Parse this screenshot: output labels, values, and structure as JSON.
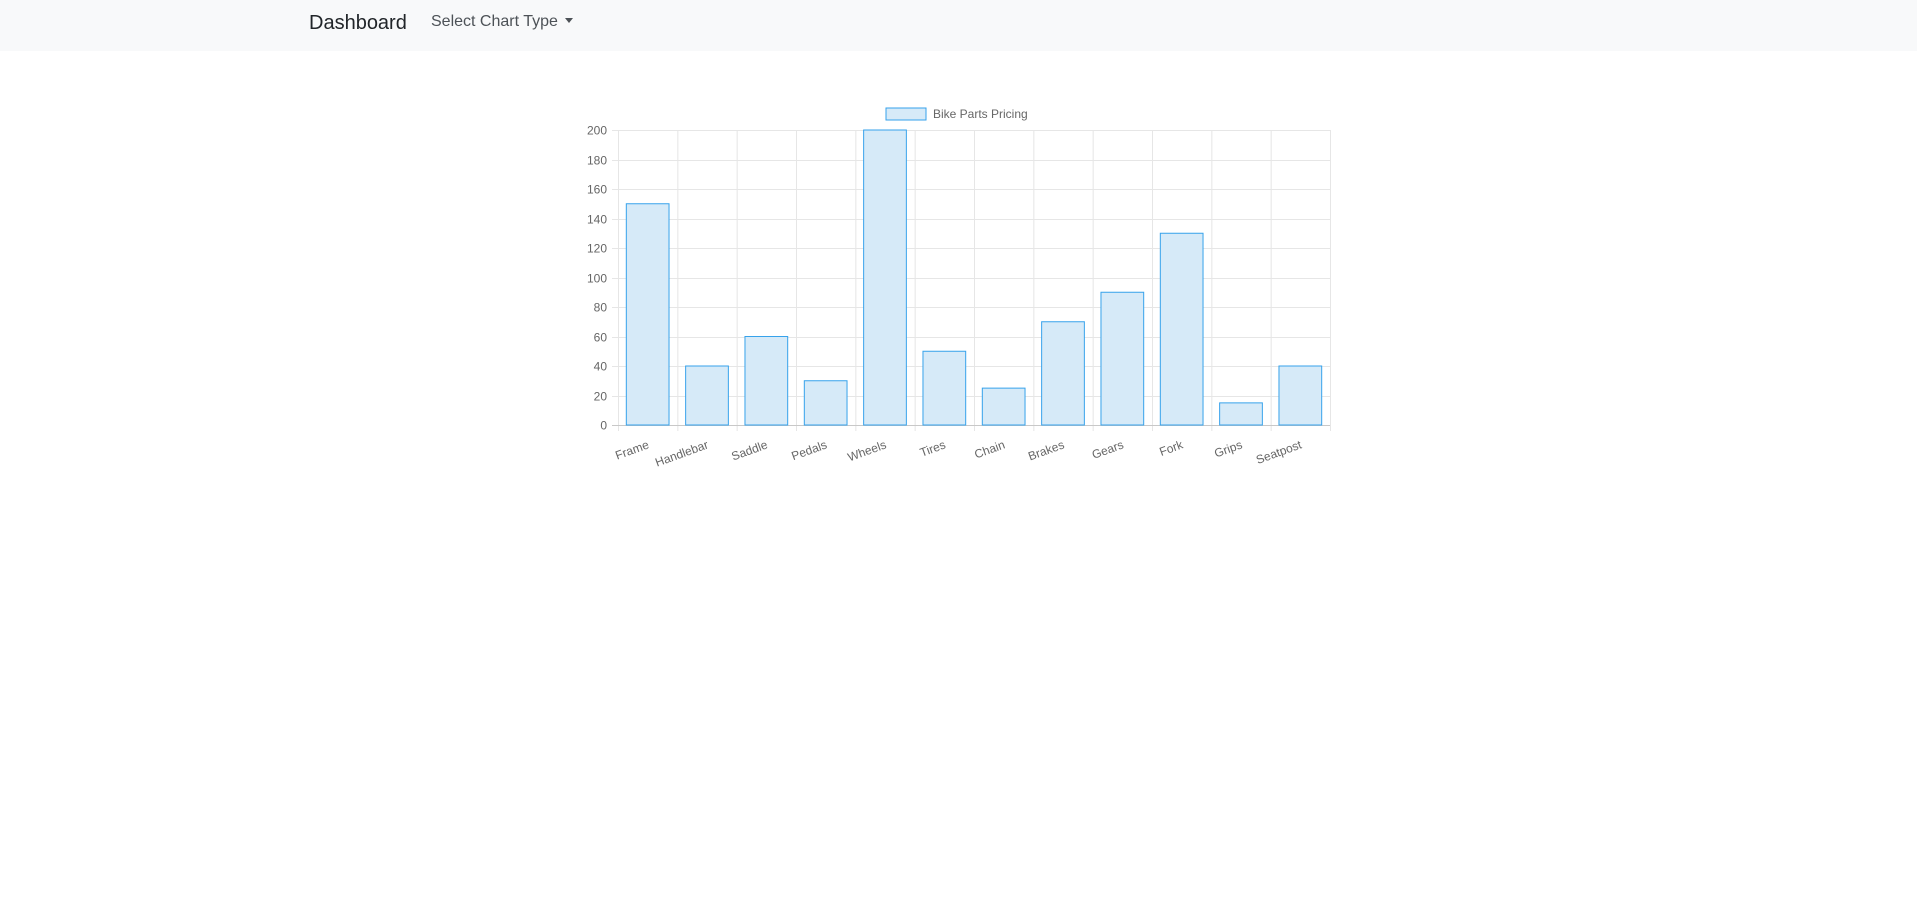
{
  "navbar": {
    "brand": "Dashboard",
    "chart_type_menu": "Select Chart Type"
  },
  "colors": {
    "bar_fill": "#d6eaf8",
    "bar_border": "#36a2eb",
    "grid": "#e6e6e6",
    "navbar_bg": "#f8f9fa"
  },
  "chart_data": {
    "type": "bar",
    "categories": [
      "Frame",
      "Handlebar",
      "Saddle",
      "Pedals",
      "Wheels",
      "Tires",
      "Chain",
      "Brakes",
      "Gears",
      "Fork",
      "Grips",
      "Seatpost"
    ],
    "series": [
      {
        "name": "Bike Parts Pricing",
        "values": [
          150,
          40,
          60,
          30,
          200,
          50,
          25,
          70,
          90,
          130,
          15,
          40
        ]
      }
    ],
    "yticks": [
      "0",
      "20",
      "40",
      "60",
      "80",
      "100",
      "120",
      "140",
      "160",
      "180",
      "200"
    ],
    "ylim": [
      0,
      200
    ],
    "legend": "top-center",
    "grid": true
  }
}
